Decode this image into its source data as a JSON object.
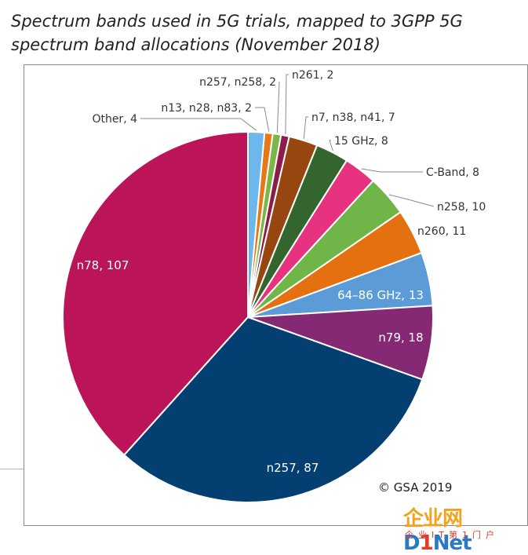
{
  "chart_data": {
    "type": "pie",
    "title": "Spectrum bands used in 5G trials, mapped to 3GPP 5G spectrum band allocations (November 2018)",
    "slices": [
      {
        "label": "Other, 4",
        "name": "Other",
        "value": 4,
        "color": "#6cb8ec",
        "label_pos": "outside"
      },
      {
        "label": "n13, n28, n83, 2",
        "name": "n13, n28, n83",
        "value": 2,
        "color": "#e87817",
        "label_pos": "outside"
      },
      {
        "label": "n257, n258, 2",
        "name": "n257, n258",
        "value": 2,
        "color": "#7ab648",
        "label_pos": "outside"
      },
      {
        "label": "n261, 2",
        "name": "n261",
        "value": 2,
        "color": "#8e1c4a",
        "label_pos": "outside"
      },
      {
        "label": "n7, n38, n41, 7",
        "name": "n7, n38, n41",
        "value": 7,
        "color": "#97460f",
        "label_pos": "outside"
      },
      {
        "label": "15 GHz, 8",
        "name": "15 GHz",
        "value": 8,
        "color": "#35652e",
        "label_pos": "outside"
      },
      {
        "label": "C-Band, 8",
        "name": "C-Band",
        "value": 8,
        "color": "#e6327f",
        "label_pos": "outside"
      },
      {
        "label": "n258, 10",
        "name": "n258",
        "value": 10,
        "color": "#6fb547",
        "label_pos": "outside"
      },
      {
        "label": "n260, 11",
        "name": "n260",
        "value": 11,
        "color": "#e5700f",
        "label_pos": "outside"
      },
      {
        "label": "64–86 GHz, 13",
        "name": "64–86 GHz",
        "value": 13,
        "color": "#5a9bd8",
        "label_pos": "inside"
      },
      {
        "label": "n79, 18",
        "name": "n79",
        "value": 18,
        "color": "#862974",
        "label_pos": "inside"
      },
      {
        "label": "n257, 87",
        "name": "n257",
        "value": 87,
        "color": "#033f70",
        "label_pos": "inside"
      },
      {
        "label": "n78, 107",
        "name": "n78",
        "value": 107,
        "color": "#bc1459",
        "label_pos": "inside"
      }
    ],
    "legend": "none",
    "start": "top, clockwise"
  },
  "credit": "© GSA 2019",
  "watermark": {
    "cn": "企业网",
    "d": "D",
    "i": "1",
    "net": "Net",
    "sub": "企业IT第1门户"
  }
}
